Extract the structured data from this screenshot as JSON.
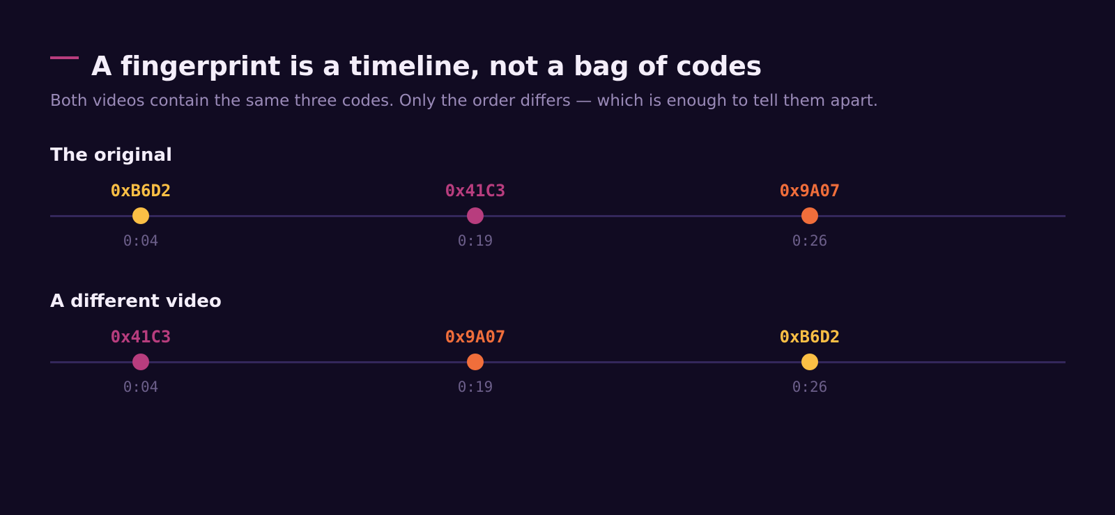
{
  "title": "A fingerprint is a timeline, not a bag of codes",
  "subtitle": "Both videos contain the same three codes. Only the order differs — which is enough to tell them apart.",
  "colors": {
    "background": "#110b22",
    "accent": "#b83d7e",
    "timeline": "#34275b",
    "code_B6D2": "#fbbf45",
    "code_41C3": "#b83d7e",
    "code_9A07": "#f06e3b"
  },
  "tracks": [
    {
      "label": "The original",
      "events": [
        {
          "code": "0xB6D2",
          "time": "0:04",
          "color": "#fbbf45"
        },
        {
          "code": "0x41C3",
          "time": "0:19",
          "color": "#b83d7e"
        },
        {
          "code": "0x9A07",
          "time": "0:26",
          "color": "#f06e3b"
        }
      ]
    },
    {
      "label": "A different video",
      "events": [
        {
          "code": "0x41C3",
          "time": "0:04",
          "color": "#b83d7e"
        },
        {
          "code": "0x9A07",
          "time": "0:19",
          "color": "#f06e3b"
        },
        {
          "code": "0xB6D2",
          "time": "0:26",
          "color": "#fbbf45"
        }
      ]
    }
  ]
}
